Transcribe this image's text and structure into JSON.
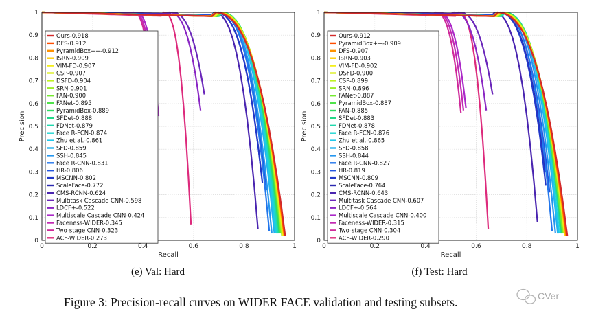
{
  "figure": {
    "caption": "Figure 3: Precision-recall curves on WIDER FACE validation and testing subsets.",
    "watermark": "CVer"
  },
  "chart_data": [
    {
      "type": "line",
      "subcaption": "(e) Val: Hard",
      "xlabel": "Recall",
      "ylabel": "Precision",
      "xlim": [
        0,
        1
      ],
      "ylim": [
        0,
        1
      ],
      "xticks": [
        "0",
        "0.2",
        "0.4",
        "0.6",
        "0.8",
        "1"
      ],
      "yticks": [
        "0",
        "0.1",
        "0.2",
        "0.3",
        "0.4",
        "0.5",
        "0.6",
        "0.7",
        "0.8",
        "0.9",
        "1"
      ],
      "grid": true,
      "legend_position": "left",
      "series": [
        {
          "name": "Ours-0.918",
          "color": "#d32a2a",
          "end": [
            0.963,
            0.02
          ]
        },
        {
          "name": "DFS-0.912",
          "color": "#ff4d00",
          "end": [
            0.96,
            0.02
          ]
        },
        {
          "name": "PyramidBox++-0.912",
          "color": "#ff9200",
          "end": [
            0.96,
            0.02
          ]
        },
        {
          "name": "ISRN-0.909",
          "color": "#ffcc00",
          "end": [
            0.957,
            0.02
          ]
        },
        {
          "name": "VIM-FD-0.907",
          "color": "#f4ee1c",
          "end": [
            0.955,
            0.02
          ]
        },
        {
          "name": "CSP-0.907",
          "color": "#dcef20",
          "end": [
            0.955,
            0.02
          ]
        },
        {
          "name": "DSFD-0.904",
          "color": "#bff223",
          "end": [
            0.952,
            0.02
          ]
        },
        {
          "name": "SRN-0.901",
          "color": "#9cef2a",
          "end": [
            0.95,
            0.02
          ]
        },
        {
          "name": "FAN-0.900",
          "color": "#74ea2f",
          "end": [
            0.947,
            0.03
          ]
        },
        {
          "name": "FANet-0.895",
          "color": "#4fe34a",
          "end": [
            0.945,
            0.03
          ]
        },
        {
          "name": "PyramidBox-0.889",
          "color": "#2edc63",
          "end": [
            0.94,
            0.03
          ]
        },
        {
          "name": "SFDet-0.888",
          "color": "#22d887",
          "end": [
            0.94,
            0.03
          ]
        },
        {
          "name": "FDNet-0.879",
          "color": "#1fd8ad",
          "end": [
            0.935,
            0.03
          ]
        },
        {
          "name": "Face R-FCN-0.874",
          "color": "#1dd5d1",
          "end": [
            0.93,
            0.03
          ]
        },
        {
          "name": "Zhu et al.-0.861",
          "color": "#1fc8ea",
          "end": [
            0.925,
            0.03
          ]
        },
        {
          "name": "SFD-0.859",
          "color": "#22b2ee",
          "end": [
            0.92,
            0.03
          ]
        },
        {
          "name": "SSH-0.845",
          "color": "#2496ef",
          "end": [
            0.91,
            0.03
          ]
        },
        {
          "name": "Face R-CNN-0.831",
          "color": "#2377ec",
          "end": [
            0.9,
            0.04
          ]
        },
        {
          "name": "HR-0.806",
          "color": "#2355e0",
          "end": [
            0.89,
            0.22
          ]
        },
        {
          "name": "MSCNN-0.802",
          "color": "#2238c8",
          "end": [
            0.873,
            0.25
          ]
        },
        {
          "name": "ScaleFace-0.772",
          "color": "#2b28b0",
          "end": [
            0.87,
            0.28
          ]
        },
        {
          "name": "CMS-RCNN-0.624",
          "color": "#4a25b0",
          "end": [
            0.855,
            0.05
          ]
        },
        {
          "name": "Multitask Cascade CNN-0.598",
          "color": "#6a26ba",
          "end": [
            0.643,
            0.64
          ]
        },
        {
          "name": "LDCF+-0.522",
          "color": "#8a27c4",
          "end": [
            0.628,
            0.57
          ]
        },
        {
          "name": "Multiscale Cascade CNN-0.424",
          "color": "#ab28c8",
          "end": [
            0.462,
            0.545
          ]
        },
        {
          "name": "Faceness-WIDER-0.345",
          "color": "#c229b2",
          "end": [
            0.452,
            0.55
          ]
        },
        {
          "name": "Two-stage CNN-0.323",
          "color": "#cf2a9a",
          "end": [
            0.444,
            0.56
          ]
        },
        {
          "name": "ACF-WIDER-0.273",
          "color": "#dd2a7c",
          "end": [
            0.59,
            0.07
          ]
        }
      ]
    },
    {
      "type": "line",
      "subcaption": "(f) Test: Hard",
      "xlabel": "Recall",
      "ylabel": "Precision",
      "xlim": [
        0,
        1
      ],
      "ylim": [
        0,
        1
      ],
      "xticks": [
        "0",
        "0.2",
        "0.4",
        "0.6",
        "0.8",
        "1"
      ],
      "yticks": [
        "0",
        "0.1",
        "0.2",
        "0.3",
        "0.4",
        "0.5",
        "0.6",
        "0.7",
        "0.8",
        "0.9",
        "1"
      ],
      "grid": true,
      "legend_position": "left",
      "series": [
        {
          "name": "Ours-0.912",
          "color": "#d32a2a",
          "end": [
            0.96,
            0.02
          ]
        },
        {
          "name": "PyramidBox++-0.909",
          "color": "#ff4d00",
          "end": [
            0.957,
            0.02
          ]
        },
        {
          "name": "DFS-0.907",
          "color": "#ff9200",
          "end": [
            0.955,
            0.02
          ]
        },
        {
          "name": "ISRN-0.903",
          "color": "#ffcc00",
          "end": [
            0.953,
            0.02
          ]
        },
        {
          "name": "VIM-FD-0.902",
          "color": "#f4ee1c",
          "end": [
            0.952,
            0.02
          ]
        },
        {
          "name": "DSFD-0.900",
          "color": "#dcef20",
          "end": [
            0.95,
            0.02
          ]
        },
        {
          "name": "CSP-0.899",
          "color": "#bff223",
          "end": [
            0.95,
            0.02
          ]
        },
        {
          "name": "SRN-0.896",
          "color": "#9cef2a",
          "end": [
            0.947,
            0.03
          ]
        },
        {
          "name": "FANet-0.887",
          "color": "#74ea2f",
          "end": [
            0.942,
            0.03
          ]
        },
        {
          "name": "PyramidBox-0.887",
          "color": "#4fe34a",
          "end": [
            0.942,
            0.03
          ]
        },
        {
          "name": "FAN-0.885",
          "color": "#2edc63",
          "end": [
            0.94,
            0.03
          ]
        },
        {
          "name": "SFDet-0.883",
          "color": "#22d887",
          "end": [
            0.938,
            0.03
          ]
        },
        {
          "name": "FDNet-0.878",
          "color": "#1fd8ad",
          "end": [
            0.935,
            0.03
          ]
        },
        {
          "name": "Face R-FCN-0.876",
          "color": "#1dd5d1",
          "end": [
            0.933,
            0.03
          ]
        },
        {
          "name": "Zhu et al.-0.865",
          "color": "#1fc8ea",
          "end": [
            0.927,
            0.03
          ]
        },
        {
          "name": "SFD-0.858",
          "color": "#22b2ee",
          "end": [
            0.922,
            0.03
          ]
        },
        {
          "name": "SSH-0.844",
          "color": "#2496ef",
          "end": [
            0.913,
            0.03
          ]
        },
        {
          "name": "Face R-CNN-0.827",
          "color": "#2377ec",
          "end": [
            0.9,
            0.04
          ]
        },
        {
          "name": "HR-0.819",
          "color": "#2355e0",
          "end": [
            0.89,
            0.21
          ]
        },
        {
          "name": "MSCNN-0.809",
          "color": "#2238c8",
          "end": [
            0.875,
            0.24
          ]
        },
        {
          "name": "ScaleFace-0.764",
          "color": "#2b28b0",
          "end": [
            0.872,
            0.3
          ]
        },
        {
          "name": "CMS-RCNN-0.643",
          "color": "#4a25b0",
          "end": [
            0.842,
            0.08
          ]
        },
        {
          "name": "Multitask Cascade CNN-0.607",
          "color": "#6a26ba",
          "end": [
            0.665,
            0.64
          ]
        },
        {
          "name": "LDCF+-0.564",
          "color": "#8a27c4",
          "end": [
            0.64,
            0.57
          ]
        },
        {
          "name": "Multiscale Cascade CNN-0.400",
          "color": "#ab28c8",
          "end": [
            0.56,
            0.58
          ]
        },
        {
          "name": "Faceness-WIDER-0.315",
          "color": "#c229b2",
          "end": [
            0.55,
            0.57
          ]
        },
        {
          "name": "Two-stage CNN-0.304",
          "color": "#cf2a9a",
          "end": [
            0.54,
            0.56
          ]
        },
        {
          "name": "ACF-WIDER-0.290",
          "color": "#dd2a7c",
          "end": [
            0.648,
            0.05
          ]
        }
      ]
    }
  ]
}
